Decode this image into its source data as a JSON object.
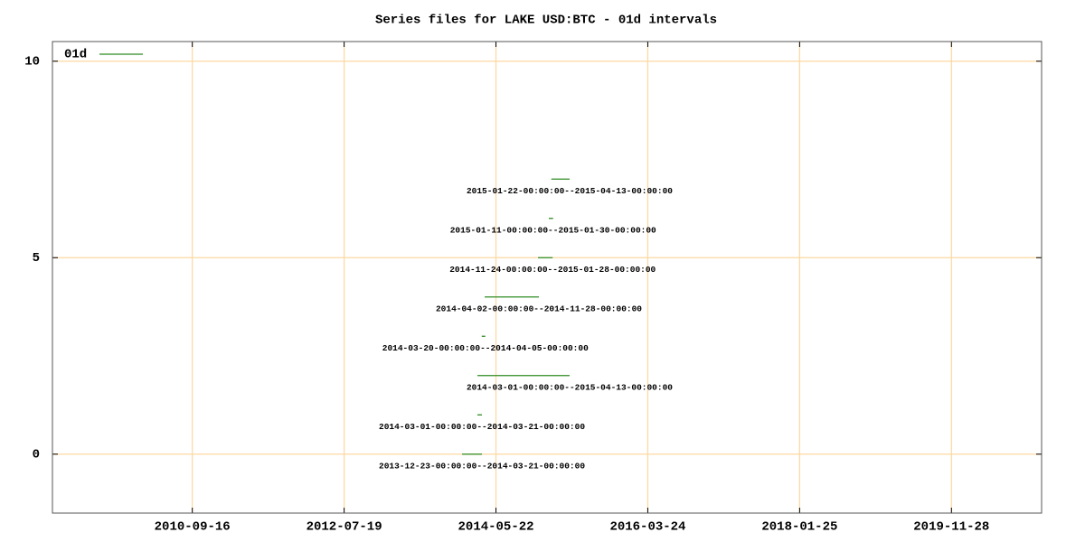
{
  "chart_data": {
    "type": "interval",
    "title": "Series files for LAKE USD:BTC - 01d intervals",
    "series": [
      {
        "name": "01d",
        "color": "#2e8b22",
        "values": [
          0,
          1,
          2,
          3,
          4,
          5,
          6,
          7
        ],
        "start": [
          "2013-12-23",
          "2014-03-01",
          "2014-03-01",
          "2014-03-20",
          "2014-04-02",
          "2014-11-24",
          "2015-01-11",
          "2015-01-22"
        ],
        "end": [
          "2014-03-21",
          "2014-03-21",
          "2015-04-13",
          "2014-04-05",
          "2014-11-28",
          "2015-01-28",
          "2015-01-30",
          "2015-04-13"
        ],
        "labels": [
          "2013-12-23-00:00:00--2014-03-21-00:00:00",
          "2014-03-01-00:00:00--2014-03-21-00:00:00",
          "2014-03-01-00:00:00--2015-04-13-00:00:00",
          "2014-03-20-00:00:00--2014-04-05-00:00:00",
          "2014-04-02-00:00:00--2014-11-28-00:00:00",
          "2014-11-24-00:00:00--2015-01-28-00:00:00",
          "2015-01-11-00:00:00--2015-01-30-00:00:00",
          "2015-01-22-00:00:00--2015-04-13-00:00:00"
        ]
      }
    ],
    "xlim": [
      "2009-01-05",
      "2020-12-31"
    ],
    "xticks": [
      "2010-09-16",
      "2012-07-19",
      "2014-05-22",
      "2016-03-24",
      "2018-01-25",
      "2019-11-28"
    ],
    "ylim": [
      -1.5,
      10.5
    ],
    "yticks": [
      0,
      5,
      10
    ],
    "grid": true,
    "grid_color": "#fdd8a0",
    "legend": "top-left"
  }
}
